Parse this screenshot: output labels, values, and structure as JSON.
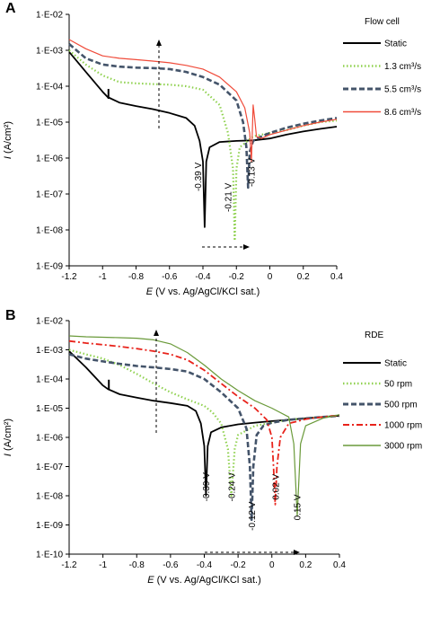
{
  "chart_data": [
    {
      "type": "line",
      "panel": "A",
      "xlabel_main": "E",
      "xlabel_rest": " (V vs. Ag/AgCl/KCl sat.)",
      "ylabel_main": "I",
      "ylabel_rest": " (A/cm²)",
      "xlim": [
        -1.2,
        0.4
      ],
      "ylim": [
        1e-09,
        0.01
      ],
      "y_scale": "log",
      "x_ticks": [
        "-1.2",
        "-1",
        "-0.8",
        "-0.6",
        "-0.4",
        "-0.2",
        "0",
        "0.2",
        "0.4"
      ],
      "y_ticks": [
        "1·E-09",
        "1·E-08",
        "1·E-07",
        "1·E-06",
        "1·E-05",
        "1·E-04",
        "1·E-03",
        "1·E-02"
      ],
      "legend_title": "Flow cell",
      "series": [
        {
          "name": "Static",
          "color": "#000000",
          "style": "solid",
          "x": [
            -1.2,
            -1.1,
            -1.0,
            -0.97,
            -0.9,
            -0.8,
            -0.7,
            -0.6,
            -0.5,
            -0.45,
            -0.42,
            -0.4,
            -0.39,
            -0.38,
            -0.36,
            -0.3,
            -0.2,
            -0.1,
            0.0,
            0.1,
            0.2,
            0.3,
            0.4
          ],
          "y": [
            0.0009,
            0.00025,
            7e-05,
            5e-05,
            3.5e-05,
            2.8e-05,
            2.3e-05,
            1.8e-05,
            1.3e-05,
            8e-06,
            3e-06,
            8e-07,
            1.2e-08,
            8e-07,
            2e-06,
            2.8e-06,
            3e-06,
            3.1e-06,
            3.5e-06,
            4.5e-06,
            5.5e-06,
            6.5e-06,
            7.5e-06
          ]
        },
        {
          "name": "1.3 cm³/s",
          "color": "#8fd14f",
          "style": "dotted",
          "x": [
            -1.2,
            -1.1,
            -1.0,
            -0.9,
            -0.8,
            -0.7,
            -0.6,
            -0.5,
            -0.4,
            -0.3,
            -0.25,
            -0.22,
            -0.21,
            -0.2,
            -0.18,
            -0.1,
            0.0,
            0.1,
            0.2,
            0.3,
            0.4
          ],
          "y": [
            0.001,
            0.0004,
            0.0002,
            0.00013,
            0.00012,
            0.000115,
            0.00011,
            0.0001,
            8e-05,
            3e-05,
            5e-06,
            5e-07,
            5e-09,
            5e-07,
            2e-06,
            4e-06,
            5e-06,
            6e-06,
            8e-06,
            1e-05,
            1.1e-05
          ]
        },
        {
          "name": "5.5 cm³/s",
          "color": "#44546a",
          "style": "dashed",
          "x": [
            -1.2,
            -1.1,
            -1.0,
            -0.9,
            -0.8,
            -0.7,
            -0.6,
            -0.5,
            -0.4,
            -0.3,
            -0.2,
            -0.16,
            -0.14,
            -0.13,
            -0.12,
            -0.1,
            -0.05,
            0.0,
            0.1,
            0.2,
            0.3,
            0.4
          ],
          "y": [
            0.0015,
            0.0006,
            0.0004,
            0.00035,
            0.00033,
            0.00032,
            0.0003,
            0.00025,
            0.00018,
            0.00011,
            4e-05,
            1e-05,
            2e-06,
            1.5e-07,
            1.5e-06,
            3e-06,
            4e-06,
            5e-06,
            7e-06,
            9e-06,
            1.1e-05,
            1.3e-05
          ]
        },
        {
          "name": "8.6 cm³/s",
          "color": "#f04b3a",
          "style": "solid",
          "x": [
            -1.2,
            -1.1,
            -1.0,
            -0.9,
            -0.8,
            -0.7,
            -0.6,
            -0.5,
            -0.4,
            -0.3,
            -0.2,
            -0.15,
            -0.12,
            -0.11,
            -0.1,
            -0.09,
            -0.08,
            -0.05,
            0.0,
            0.1,
            0.2,
            0.3,
            0.4
          ],
          "y": [
            0.002,
            0.0011,
            0.0007,
            0.0006,
            0.00055,
            0.0005,
            0.00045,
            0.00038,
            0.0003,
            0.00018,
            7e-05,
            2.5e-05,
            5e-06,
            8e-07,
            3e-05,
            1.2e-05,
            4e-06,
            3.5e-06,
            4.5e-06,
            6e-06,
            8e-06,
            1e-05,
            1.2e-05
          ]
        }
      ],
      "annotations": [
        {
          "text": "-0.39 V",
          "x": -0.41,
          "y": 3e-07
        },
        {
          "text": "-0.21 V",
          "x": -0.23,
          "y": 8e-08
        },
        {
          "text": "-0.13 V",
          "x": -0.09,
          "y": 4e-07
        }
      ]
    },
    {
      "type": "line",
      "panel": "B",
      "xlabel_main": "E",
      "xlabel_rest": " (V vs. Ag/AgCl/KCl sat.)",
      "ylabel_main": "I",
      "ylabel_rest": " (A/cm²)",
      "xlim": [
        -1.2,
        0.4
      ],
      "ylim": [
        1e-10,
        0.01
      ],
      "y_scale": "log",
      "x_ticks": [
        "-1.2",
        "-1",
        "-0.8",
        "-0.6",
        "-0.4",
        "-0.2",
        "0",
        "0.2",
        "0.4"
      ],
      "y_ticks": [
        "1·E-10",
        "1·E-09",
        "1·E-08",
        "1·E-07",
        "1·E-06",
        "1·E-05",
        "1·E-04",
        "1·E-03",
        "1·E-02"
      ],
      "legend_title": "RDE",
      "series": [
        {
          "name": "Static",
          "color": "#000000",
          "style": "solid",
          "x": [
            -1.2,
            -1.1,
            -1.0,
            -0.97,
            -0.9,
            -0.8,
            -0.7,
            -0.6,
            -0.5,
            -0.45,
            -0.42,
            -0.4,
            -0.39,
            -0.38,
            -0.36,
            -0.3,
            -0.2,
            -0.1,
            0.0,
            0.1,
            0.2,
            0.3,
            0.4
          ],
          "y": [
            0.0009,
            0.00025,
            6e-05,
            4.5e-05,
            3e-05,
            2.3e-05,
            1.8e-05,
            1.5e-05,
            1.2e-05,
            8e-06,
            3e-06,
            5e-07,
            1e-08,
            5e-07,
            1.5e-06,
            2.2e-06,
            2.8e-06,
            3.2e-06,
            3.6e-06,
            4e-06,
            4.5e-06,
            5e-06,
            5.5e-06
          ]
        },
        {
          "name": "50 rpm",
          "color": "#8fd14f",
          "style": "dotted",
          "x": [
            -1.2,
            -1.1,
            -1.0,
            -0.9,
            -0.8,
            -0.7,
            -0.6,
            -0.5,
            -0.4,
            -0.35,
            -0.3,
            -0.26,
            -0.24,
            -0.22,
            -0.2,
            -0.1,
            0.0,
            0.1,
            0.2,
            0.3,
            0.4
          ],
          "y": [
            0.001,
            0.0007,
            0.0005,
            0.0003,
            0.00015,
            7e-05,
            3.5e-05,
            2e-05,
            1.2e-05,
            7e-06,
            3e-06,
            4e-07,
            1e-08,
            4e-07,
            1.2e-06,
            2.5e-06,
            3.2e-06,
            4e-06,
            4.5e-06,
            5e-06,
            5.5e-06
          ]
        },
        {
          "name": "500 rpm",
          "color": "#44546a",
          "style": "dashed",
          "x": [
            -1.2,
            -1.1,
            -1.0,
            -0.9,
            -0.8,
            -0.7,
            -0.6,
            -0.5,
            -0.4,
            -0.3,
            -0.2,
            -0.15,
            -0.13,
            -0.12,
            -0.11,
            -0.09,
            -0.05,
            0.0,
            0.1,
            0.2,
            0.3,
            0.4
          ],
          "y": [
            0.0007,
            0.0005,
            0.0004,
            0.00033,
            0.00028,
            0.00025,
            0.00022,
            0.00018,
            0.0001,
            3.5e-05,
            1e-05,
            2e-06,
            1e-07,
            1.5e-09,
            1e-07,
            1.2e-06,
            2.5e-06,
            3.2e-06,
            4e-06,
            4.5e-06,
            5e-06,
            5.5e-06
          ]
        },
        {
          "name": "1000 rpm",
          "color": "#e8231b",
          "style": "dashdot",
          "x": [
            -1.2,
            -1.1,
            -1.0,
            -0.9,
            -0.8,
            -0.7,
            -0.6,
            -0.5,
            -0.4,
            -0.3,
            -0.2,
            -0.1,
            -0.03,
            0.0,
            0.01,
            0.02,
            0.03,
            0.05,
            0.1,
            0.2,
            0.3,
            0.4
          ],
          "y": [
            0.002,
            0.0017,
            0.0015,
            0.0013,
            0.0011,
            0.0009,
            0.0007,
            0.00045,
            0.0002,
            7e-05,
            2.5e-05,
            1e-05,
            4e-06,
            1e-06,
            1e-07,
            5e-09,
            1e-07,
            1e-06,
            3e-06,
            4.2e-06,
            5e-06,
            5.7e-06
          ]
        },
        {
          "name": "3000 rpm",
          "color": "#6a9a3a",
          "style": "solid",
          "x": [
            -1.2,
            -1.1,
            -1.0,
            -0.9,
            -0.8,
            -0.7,
            -0.6,
            -0.5,
            -0.4,
            -0.3,
            -0.2,
            -0.1,
            0.0,
            0.1,
            0.13,
            0.15,
            0.17,
            0.2,
            0.3,
            0.4
          ],
          "y": [
            0.003,
            0.0028,
            0.0027,
            0.0026,
            0.0025,
            0.0022,
            0.0016,
            0.0008,
            0.0003,
            0.0001,
            4e-05,
            1.8e-05,
            1e-05,
            5e-06,
            6e-07,
            2e-09,
            6e-07,
            2.5e-06,
            4.5e-06,
            6e-06
          ]
        }
      ],
      "annotations": [
        {
          "text": "-0.39 V",
          "x": -0.37,
          "y": 2e-08
        },
        {
          "text": "-0.24 V",
          "x": -0.22,
          "y": 2e-08
        },
        {
          "text": "-0.12 V",
          "x": -0.1,
          "y": 2e-09
        },
        {
          "text": "0.02 V",
          "x": 0.04,
          "y": 2e-08
        },
        {
          "text": "0.15 V",
          "x": 0.17,
          "y": 4e-09
        }
      ]
    }
  ]
}
